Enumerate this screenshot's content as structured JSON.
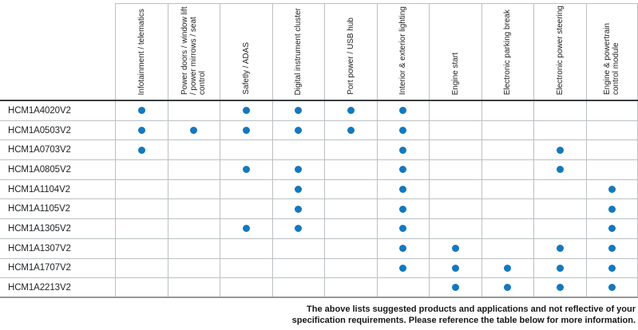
{
  "table": {
    "columns": [
      "Infotainment / telematics",
      "Power doors / window lift / power mirrows / seat control",
      "Safetly / ADAS",
      "Digital instrument cluster",
      "Port power / USB hub",
      "Interior & exterior lighting",
      "Engine start",
      "Electronic parking break",
      "Electronic power steering",
      "Engine & powertrain control module"
    ],
    "rows": [
      {
        "part": "HCM1A4020V2",
        "dots": [
          true,
          false,
          true,
          true,
          true,
          true,
          false,
          false,
          false,
          false
        ]
      },
      {
        "part": "HCM1A0503V2",
        "dots": [
          true,
          true,
          true,
          true,
          true,
          true,
          false,
          false,
          false,
          false
        ]
      },
      {
        "part": "HCM1A0703V2",
        "dots": [
          true,
          false,
          false,
          false,
          false,
          true,
          false,
          false,
          true,
          false
        ]
      },
      {
        "part": "HCM1A0805V2",
        "dots": [
          false,
          false,
          true,
          true,
          false,
          true,
          false,
          false,
          true,
          false
        ]
      },
      {
        "part": "HCM1A1104V2",
        "dots": [
          false,
          false,
          false,
          true,
          false,
          true,
          false,
          false,
          false,
          true
        ]
      },
      {
        "part": "HCM1A1105V2",
        "dots": [
          false,
          false,
          false,
          true,
          false,
          true,
          false,
          false,
          false,
          true
        ]
      },
      {
        "part": "HCM1A1305V2",
        "dots": [
          false,
          false,
          true,
          true,
          false,
          true,
          false,
          false,
          false,
          true
        ]
      },
      {
        "part": "HCM1A1307V2",
        "dots": [
          false,
          false,
          false,
          false,
          false,
          true,
          true,
          false,
          true,
          true
        ]
      },
      {
        "part": "HCM1A1707V2",
        "dots": [
          false,
          false,
          false,
          false,
          false,
          true,
          true,
          true,
          true,
          true
        ]
      },
      {
        "part": "HCM1A2213V2",
        "dots": [
          false,
          false,
          false,
          false,
          false,
          false,
          true,
          true,
          true,
          true
        ]
      }
    ],
    "dot_color": "#1478be"
  },
  "footer": {
    "line1": "The above lists suggested products and applications and not reflective of your",
    "line2": "specification requirements. Please reference the table below for more information."
  }
}
